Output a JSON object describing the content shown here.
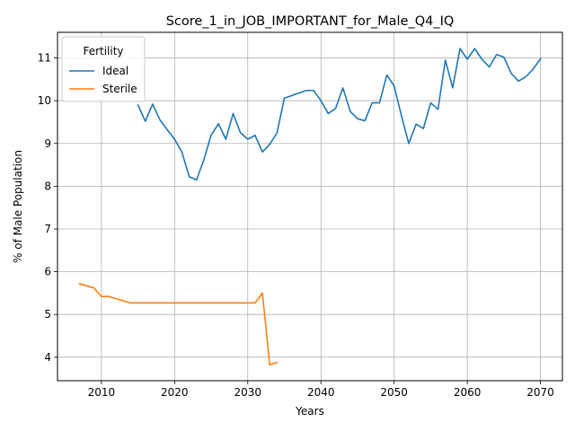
{
  "chart_data": {
    "type": "line",
    "title": "Score_1_in_JOB_IMPORTANT_for_Male_Q4_IQ",
    "xlabel": "Years",
    "ylabel": "% of Male Population",
    "xlim": [
      2004,
      2073
    ],
    "ylim": [
      3.45,
      11.6
    ],
    "xticks": [
      2010,
      2020,
      2030,
      2040,
      2050,
      2060,
      2070
    ],
    "yticks": [
      4,
      5,
      6,
      7,
      8,
      9,
      10,
      11
    ],
    "grid": true,
    "legend": {
      "title": "Fertility",
      "position": "upper-left"
    },
    "series": [
      {
        "name": "Ideal",
        "color": "#1f77b4",
        "x": [
          2015,
          2016,
          2017,
          2018,
          2019,
          2020,
          2021,
          2022,
          2023,
          2024,
          2025,
          2026,
          2027,
          2028,
          2029,
          2030,
          2031,
          2032,
          2033,
          2034,
          2035,
          2036,
          2037,
          2038,
          2039,
          2040,
          2041,
          2042,
          2043,
          2044,
          2045,
          2046,
          2047,
          2048,
          2049,
          2050,
          2051,
          2052,
          2053,
          2054,
          2055,
          2056,
          2057,
          2058,
          2059,
          2060,
          2061,
          2062,
          2063,
          2064,
          2065,
          2066,
          2067,
          2068,
          2069,
          2070
        ],
        "y": [
          9.9,
          9.52,
          9.92,
          9.55,
          9.32,
          9.1,
          8.8,
          8.22,
          8.15,
          8.62,
          9.2,
          9.46,
          9.1,
          9.7,
          9.25,
          9.1,
          9.19,
          8.8,
          8.98,
          9.25,
          10.06,
          10.12,
          10.18,
          10.24,
          10.24,
          10.0,
          9.7,
          9.82,
          10.3,
          9.75,
          9.58,
          9.53,
          9.95,
          9.95,
          10.6,
          10.35,
          9.65,
          9.0,
          9.45,
          9.35,
          9.95,
          9.8,
          10.95,
          10.3,
          11.22,
          10.97,
          11.22,
          10.97,
          10.79,
          11.08,
          11.02,
          10.64,
          10.46,
          10.56,
          10.74,
          10.98
        ]
      },
      {
        "name": "Sterile",
        "color": "#ff7f0e",
        "x": [
          2007,
          2008,
          2009,
          2010,
          2011,
          2012,
          2013,
          2014,
          2015,
          2016,
          2017,
          2018,
          2019,
          2020,
          2021,
          2022,
          2023,
          2024,
          2025,
          2026,
          2027,
          2028,
          2029,
          2030,
          2031,
          2032,
          2033,
          2034
        ],
        "y": [
          5.72,
          5.67,
          5.62,
          5.42,
          5.42,
          5.37,
          5.32,
          5.27,
          5.27,
          5.27,
          5.27,
          5.27,
          5.27,
          5.27,
          5.27,
          5.27,
          5.27,
          5.27,
          5.27,
          5.27,
          5.27,
          5.27,
          5.27,
          5.27,
          5.27,
          5.5,
          3.82,
          3.88
        ]
      }
    ]
  }
}
